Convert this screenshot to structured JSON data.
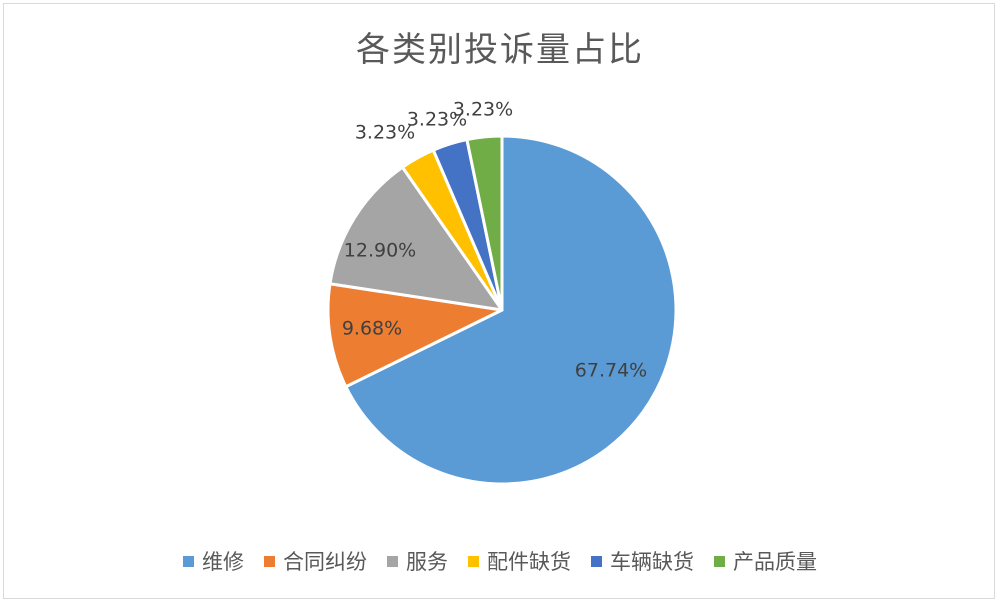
{
  "chart_data": {
    "type": "pie",
    "title": "各类别投诉量占比",
    "categories": [
      "维修",
      "合同纠纷",
      "服务",
      "配件缺货",
      "车辆缺货",
      "产品质量"
    ],
    "values": [
      67.74,
      9.68,
      12.9,
      3.23,
      3.23,
      3.23
    ],
    "labels": [
      "67.74%",
      "9.68%",
      "12.90%",
      "3.23%",
      "3.23%",
      "3.23%"
    ],
    "colors": [
      "#5b9bd5",
      "#ed7d31",
      "#a5a5a5",
      "#ffc000",
      "#4472c4",
      "#70ad47"
    ],
    "legend": "bottom"
  }
}
